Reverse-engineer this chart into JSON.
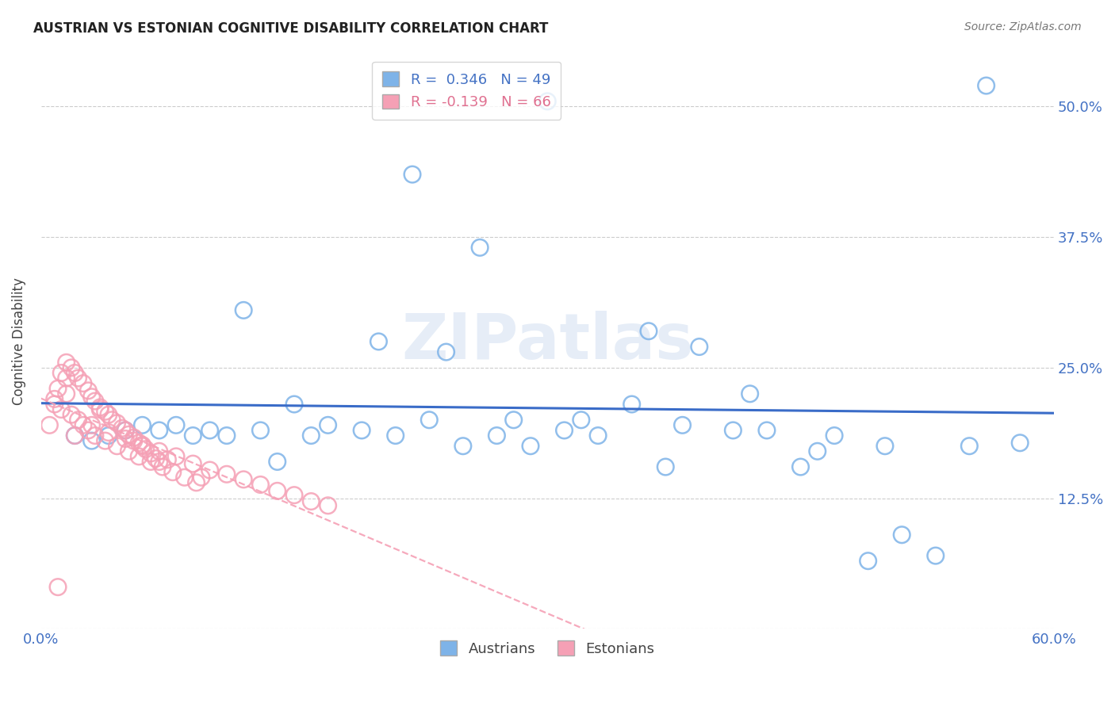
{
  "title": "AUSTRIAN VS ESTONIAN COGNITIVE DISABILITY CORRELATION CHART",
  "source": "Source: ZipAtlas.com",
  "ylabel": "Cognitive Disability",
  "xlim": [
    0.0,
    0.6
  ],
  "ylim": [
    0.0,
    0.55
  ],
  "x_ticks": [
    0.0,
    0.1,
    0.2,
    0.3,
    0.4,
    0.5,
    0.6
  ],
  "y_ticks": [
    0.0,
    0.125,
    0.25,
    0.375,
    0.5
  ],
  "grid_color": "#cccccc",
  "background": "#ffffff",
  "austrians_color": "#7eb3e8",
  "estonians_color": "#f5a0b5",
  "austrians_R": 0.346,
  "austrians_N": 49,
  "estonians_R": -0.139,
  "estonians_N": 66,
  "legend_label_austrians": "Austrians",
  "legend_label_estonians": "Estonians",
  "aus_x": [
    0.3,
    0.22,
    0.26,
    0.12,
    0.2,
    0.24,
    0.28,
    0.32,
    0.38,
    0.42,
    0.5,
    0.55,
    0.58,
    0.08,
    0.1,
    0.13,
    0.15,
    0.17,
    0.19,
    0.23,
    0.27,
    0.31,
    0.35,
    0.39,
    0.43,
    0.47,
    0.51,
    0.04,
    0.07,
    0.09,
    0.11,
    0.14,
    0.16,
    0.21,
    0.25,
    0.29,
    0.33,
    0.37,
    0.41,
    0.45,
    0.49,
    0.53,
    0.06,
    0.36,
    0.46,
    0.56,
    0.02,
    0.05,
    0.03
  ],
  "aus_y": [
    0.505,
    0.435,
    0.365,
    0.305,
    0.275,
    0.265,
    0.2,
    0.2,
    0.195,
    0.225,
    0.175,
    0.175,
    0.178,
    0.195,
    0.19,
    0.19,
    0.215,
    0.195,
    0.19,
    0.2,
    0.185,
    0.19,
    0.215,
    0.27,
    0.19,
    0.185,
    0.09,
    0.185,
    0.19,
    0.185,
    0.185,
    0.16,
    0.185,
    0.185,
    0.175,
    0.175,
    0.185,
    0.155,
    0.19,
    0.155,
    0.065,
    0.07,
    0.195,
    0.285,
    0.17,
    0.52,
    0.185,
    0.19,
    0.18
  ],
  "est_x": [
    0.005,
    0.008,
    0.01,
    0.012,
    0.015,
    0.018,
    0.02,
    0.022,
    0.025,
    0.028,
    0.03,
    0.032,
    0.035,
    0.038,
    0.04,
    0.042,
    0.045,
    0.048,
    0.05,
    0.052,
    0.055,
    0.058,
    0.06,
    0.062,
    0.065,
    0.068,
    0.07,
    0.012,
    0.015,
    0.018,
    0.022,
    0.025,
    0.028,
    0.032,
    0.038,
    0.045,
    0.052,
    0.058,
    0.065,
    0.072,
    0.078,
    0.085,
    0.092,
    0.01,
    0.02,
    0.03,
    0.04,
    0.05,
    0.06,
    0.07,
    0.08,
    0.09,
    0.1,
    0.11,
    0.12,
    0.13,
    0.14,
    0.15,
    0.16,
    0.17,
    0.008,
    0.015,
    0.035,
    0.055,
    0.075,
    0.095
  ],
  "est_y": [
    0.195,
    0.215,
    0.23,
    0.245,
    0.255,
    0.25,
    0.245,
    0.24,
    0.235,
    0.228,
    0.222,
    0.218,
    0.212,
    0.208,
    0.205,
    0.2,
    0.197,
    0.192,
    0.19,
    0.186,
    0.183,
    0.178,
    0.175,
    0.172,
    0.168,
    0.163,
    0.16,
    0.21,
    0.225,
    0.205,
    0.2,
    0.195,
    0.19,
    0.185,
    0.18,
    0.175,
    0.17,
    0.165,
    0.16,
    0.155,
    0.15,
    0.145,
    0.14,
    0.04,
    0.185,
    0.195,
    0.188,
    0.182,
    0.176,
    0.17,
    0.165,
    0.158,
    0.152,
    0.148,
    0.143,
    0.138,
    0.132,
    0.128,
    0.122,
    0.118,
    0.22,
    0.24,
    0.21,
    0.18,
    0.162,
    0.145
  ]
}
